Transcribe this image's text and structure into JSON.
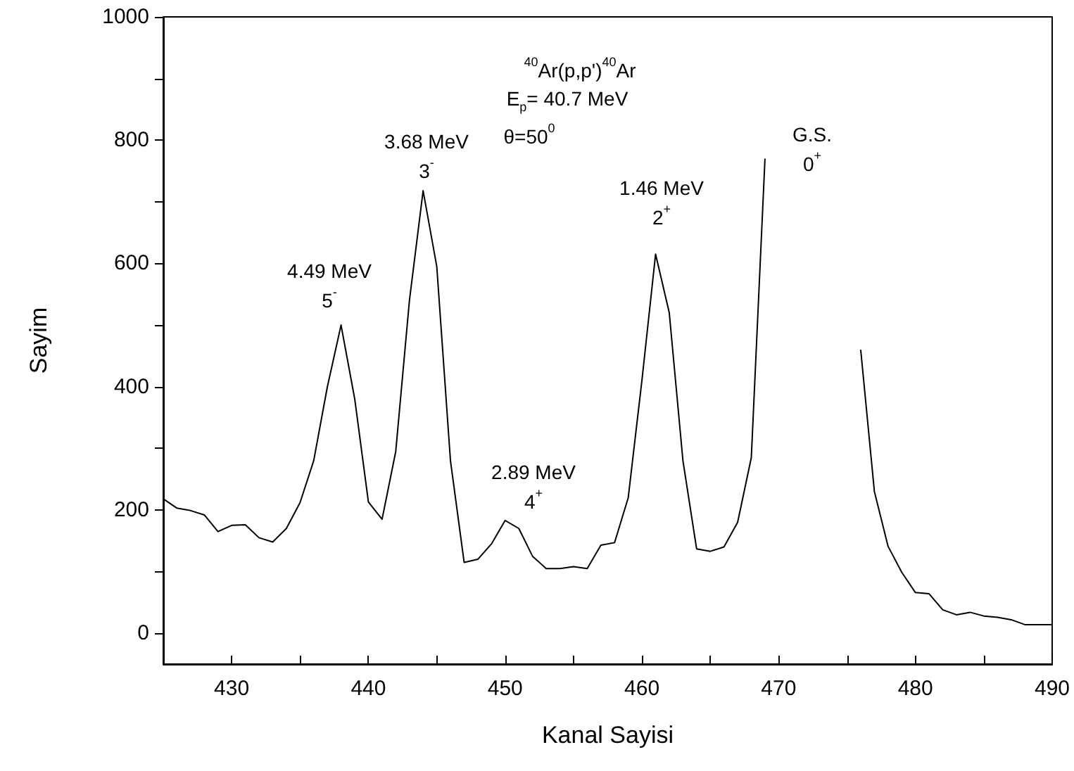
{
  "chart_data": {
    "type": "line",
    "xlabel": "Kanal Sayisi",
    "ylabel": "Sayim",
    "x": [
      425,
      426,
      427,
      428,
      429,
      430,
      431,
      432,
      433,
      434,
      435,
      436,
      437,
      438,
      439,
      440,
      441,
      442,
      443,
      444,
      445,
      446,
      447,
      448,
      449,
      450,
      451,
      452,
      453,
      454,
      455,
      456,
      457,
      458,
      459,
      460,
      461,
      462,
      463,
      464,
      465,
      466,
      467,
      468,
      469,
      470,
      471,
      472,
      473,
      474,
      475,
      476,
      477,
      478,
      479,
      480,
      481,
      482,
      483,
      484,
      485,
      486,
      487,
      488,
      489,
      490
    ],
    "series": [
      {
        "color": "#000000",
        "values": [
          218,
          203,
          199,
          192,
          165,
          175,
          176,
          155,
          148,
          170,
          212,
          280,
          400,
          500,
          380,
          213,
          185,
          295,
          540,
          718,
          595,
          280,
          115,
          120,
          145,
          183,
          170,
          125,
          105,
          105,
          108,
          105,
          143,
          147,
          220,
          410,
          615,
          520,
          280,
          137,
          133,
          140,
          180,
          285,
          770,
          null,
          null,
          null,
          null,
          null,
          null,
          460,
          230,
          141,
          99,
          66,
          64,
          38,
          30,
          34,
          28,
          26,
          22,
          14,
          14,
          14
        ]
      }
    ],
    "xlim": [
      425,
      490
    ],
    "xticks": [
      {
        "value": 425,
        "label": null
      },
      430,
      {
        "value": 435,
        "label": null
      },
      440,
      {
        "value": 445,
        "label": null
      },
      450,
      {
        "value": 455,
        "label": null
      },
      460,
      {
        "value": 465,
        "label": null
      },
      470,
      {
        "value": 475,
        "label": null
      },
      480,
      {
        "value": 485,
        "label": null
      },
      490
    ],
    "ylim": [
      -50,
      1000
    ],
    "yticks": [
      0,
      {
        "value": 100,
        "label": null
      },
      200,
      {
        "value": 300,
        "label": null
      },
      400,
      {
        "value": 500,
        "label": null
      },
      600,
      {
        "value": 700,
        "label": null
      },
      800,
      {
        "value": 900,
        "label": null
      },
      1000
    ],
    "grid": false,
    "marker": "none",
    "line_style": "solid",
    "annotations": [
      "4.49 MeV\n5$^{-}$",
      "3.68 MeV\n3$^{-}$",
      "2.89 MeV\n4$^{+}$",
      "1.46 MeV\n2$^{+}$",
      "G.S.\n0$^{+}$",
      "$^{40}$Ar(p,p')$^{40}$Ar",
      "E$_{p}$= 40.7 MeV",
      "θ=50$^{0}$"
    ]
  }
}
